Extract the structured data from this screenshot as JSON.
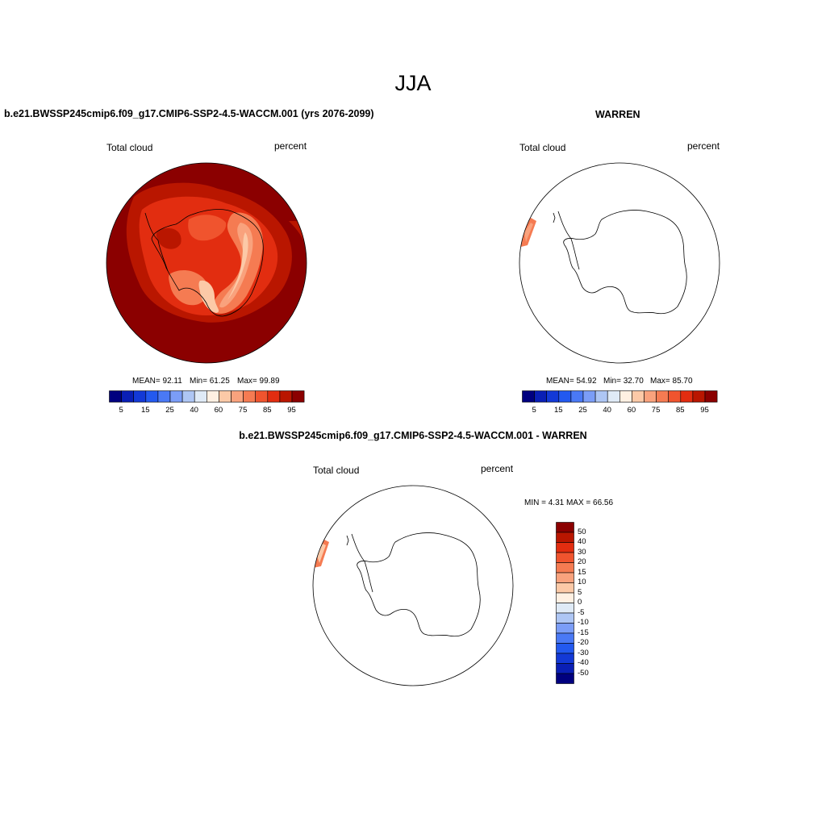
{
  "figure": {
    "title": "JJA"
  },
  "panels": [
    {
      "title": "b.e21.BWSSP245cmip6.f09_g17.CMIP6-SSP2-4.5-WACCM.001 (yrs 2076-2099)",
      "left_label": "Total cloud",
      "right_label": "percent",
      "stats": {
        "mean": "MEAN=  92.11",
        "min": "Min=  61.25",
        "max": "Max=  99.89"
      }
    },
    {
      "title": "WARREN",
      "left_label": "Total cloud",
      "right_label": "percent",
      "stats": {
        "mean": "MEAN=  54.92",
        "min": "Min=  32.70",
        "max": "Max=  85.70"
      }
    },
    {
      "title": "b.e21.BWSSP245cmip6.f09_g17.CMIP6-SSP2-4.5-WACCM.001 - WARREN",
      "left_label": "Total cloud",
      "right_label": "percent",
      "stats_text": "MIN =   4.31 MAX =  66.56"
    }
  ],
  "colorbar_h": {
    "colors": [
      "#00007f",
      "#0a1fb5",
      "#1339d6",
      "#2359ef",
      "#4a79f5",
      "#7b9df7",
      "#aec6f4",
      "#dfeaf6",
      "#fff0e2",
      "#fcc9a7",
      "#f9a27d",
      "#f57b52",
      "#f0542e",
      "#e22d10",
      "#b91600",
      "#8b0000"
    ],
    "labels": [
      "5",
      "15",
      "25",
      "40",
      "60",
      "75",
      "85",
      "95"
    ]
  },
  "colorbar_v": {
    "colors": [
      "#00007f",
      "#0a1fb5",
      "#1339d6",
      "#2359ef",
      "#4a79f5",
      "#7b9df7",
      "#aec6f4",
      "#dfeaf6",
      "#fff0e2",
      "#fcc9a7",
      "#f9a27d",
      "#f57b52",
      "#f0542e",
      "#e22d10",
      "#b91600",
      "#8b0000"
    ],
    "labels": [
      "50",
      "40",
      "30",
      "20",
      "15",
      "10",
      "5",
      "0",
      "-5",
      "-10",
      "-15",
      "-20",
      "-30",
      "-40",
      "-50"
    ]
  },
  "map_data": {
    "projection": "south-polar stereographic",
    "region": "Antarctica",
    "variable": "Total cloud",
    "units": "percent",
    "season": "JJA"
  }
}
